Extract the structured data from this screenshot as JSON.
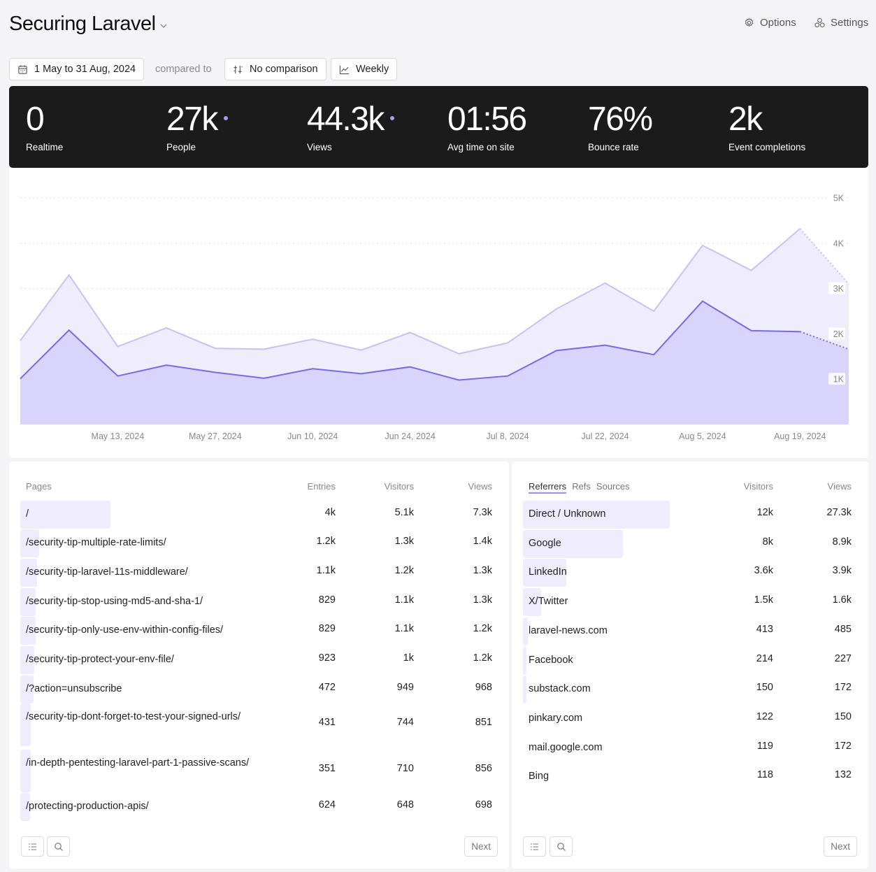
{
  "header": {
    "title": "Securing Laravel",
    "options_label": "Options",
    "settings_label": "Settings"
  },
  "toolbar": {
    "date_range": "1 May to 31 Aug, 2024",
    "compared_to": "compared to",
    "comparison": "No comparison",
    "interval": "Weekly"
  },
  "stats": [
    {
      "value": "0",
      "label": "Realtime",
      "dot": false
    },
    {
      "value": "27k",
      "label": "People",
      "dot": true
    },
    {
      "value": "44.3k",
      "label": "Views",
      "dot": true
    },
    {
      "value": "01:56",
      "label": "Avg time on site",
      "dot": false
    },
    {
      "value": "76%",
      "label": "Bounce rate",
      "dot": false
    },
    {
      "value": "2k",
      "label": "Event completions",
      "dot": false
    }
  ],
  "chart_data": {
    "type": "area",
    "x": [
      "Apr 29",
      "May 6",
      "May 13, 2024",
      "May 20",
      "May 27, 2024",
      "Jun 3",
      "Jun 10, 2024",
      "Jun 17",
      "Jun 24, 2024",
      "Jul 1",
      "Jul 8, 2024",
      "Jul 15",
      "Jul 22, 2024",
      "Jul 29",
      "Aug 5, 2024",
      "Aug 12",
      "Aug 19, 2024",
      "Aug 26"
    ],
    "xtick_labels": [
      "May 13, 2024",
      "May 27, 2024",
      "Jun 10, 2024",
      "Jun 24, 2024",
      "Jul 8, 2024",
      "Jul 22, 2024",
      "Aug 5, 2024",
      "Aug 19, 2024"
    ],
    "ytick_labels": [
      "1K",
      "2K",
      "3K",
      "4K",
      "5K"
    ],
    "ylim": [
      0,
      5000
    ],
    "series": [
      {
        "values": [
          1850,
          3300,
          1720,
          2130,
          1680,
          1660,
          1880,
          1640,
          2030,
          1560,
          1800,
          2550,
          3120,
          2500,
          3950,
          3400,
          4320,
          3100
        ],
        "color": "#c9c1f5",
        "fill": "#efedfc"
      },
      {
        "values": [
          1010,
          2080,
          1070,
          1310,
          1150,
          1020,
          1230,
          1120,
          1270,
          980,
          1070,
          1630,
          1750,
          1540,
          2720,
          2070,
          2050,
          1660
        ],
        "color": "#7a69e8",
        "fill": "#d9d4fb"
      }
    ],
    "partial_last_segment": true
  },
  "pages": {
    "headers": {
      "name": "Pages",
      "entries": "Entries",
      "visitors": "Visitors",
      "views": "Views"
    },
    "rows": [
      {
        "label": "/",
        "entries": "4k",
        "visitors": "5.1k",
        "views": "7.3k",
        "share": 0.38
      },
      {
        "label": "/security-tip-multiple-rate-limits/",
        "entries": "1.2k",
        "visitors": "1.3k",
        "views": "1.4k",
        "share": 0.08
      },
      {
        "label": "/security-tip-laravel-11s-middleware/",
        "entries": "1.1k",
        "visitors": "1.2k",
        "views": "1.3k",
        "share": 0.07
      },
      {
        "label": "/security-tip-stop-using-md5-and-sha-1/",
        "entries": "829",
        "visitors": "1.1k",
        "views": "1.3k",
        "share": 0.065
      },
      {
        "label": "/security-tip-only-use-env-within-config-files/",
        "entries": "829",
        "visitors": "1.1k",
        "views": "1.2k",
        "share": 0.065
      },
      {
        "label": "/security-tip-protect-your-env-file/",
        "entries": "923",
        "visitors": "1k",
        "views": "1.2k",
        "share": 0.06
      },
      {
        "label": "/?action=unsubscribe",
        "entries": "472",
        "visitors": "949",
        "views": "968",
        "share": 0.055
      },
      {
        "label": "/security-tip-dont-forget-to-test-your-signed-urls/",
        "entries": "431",
        "visitors": "744",
        "views": "851",
        "share": 0.045
      },
      {
        "label": "/in-depth-pentesting-laravel-part-1-passive-scans/",
        "entries": "351",
        "visitors": "710",
        "views": "856",
        "share": 0.045
      },
      {
        "label": "/protecting-production-apis/",
        "entries": "624",
        "visitors": "648",
        "views": "698",
        "share": 0.04
      }
    ],
    "next_label": "Next"
  },
  "referrers": {
    "tabs": [
      "Referrers",
      "Refs",
      "Sources"
    ],
    "headers": {
      "visitors": "Visitors",
      "views": "Views"
    },
    "rows": [
      {
        "label": "Direct / Unknown",
        "visitors": "12k",
        "views": "27.3k",
        "share": 0.44
      },
      {
        "label": "Google",
        "visitors": "8k",
        "views": "8.9k",
        "share": 0.3
      },
      {
        "label": "LinkedIn",
        "visitors": "3.6k",
        "views": "3.9k",
        "share": 0.13
      },
      {
        "label": "X/Twitter",
        "visitors": "1.5k",
        "views": "1.6k",
        "share": 0.055
      },
      {
        "label": "laravel-news.com",
        "visitors": "413",
        "views": "485",
        "share": 0.015
      },
      {
        "label": "Facebook",
        "visitors": "214",
        "views": "227",
        "share": 0.01
      },
      {
        "label": "substack.com",
        "visitors": "150",
        "views": "172",
        "share": 0.01
      },
      {
        "label": "pinkary.com",
        "visitors": "122",
        "views": "150",
        "share": 0.0
      },
      {
        "label": "mail.google.com",
        "visitors": "119",
        "views": "172",
        "share": 0.0
      },
      {
        "label": "Bing",
        "visitors": "118",
        "views": "132",
        "share": 0.0
      }
    ],
    "next_label": "Next"
  }
}
